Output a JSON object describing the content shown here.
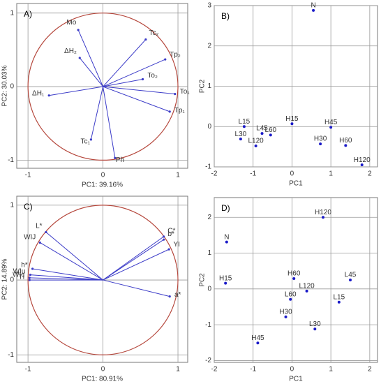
{
  "chart_data": [
    {
      "type": "loading",
      "title": "A)",
      "x_label": "PC1: 39.16%",
      "y_label": "PC2: 30.03%",
      "labels": [
        "Mo",
        "ΔH₂",
        "ΔH₁",
        "Tc₂",
        "Tp₂",
        "To₂",
        "To₁",
        "Tp₁",
        "Tc₁",
        "Ph"
      ],
      "x": [
        -0.33,
        -0.31,
        -0.72,
        0.57,
        0.83,
        0.53,
        0.96,
        0.89,
        -0.16,
        0.16
      ],
      "values": [
        0.77,
        0.39,
        -0.12,
        0.64,
        0.37,
        0.1,
        -0.1,
        -0.34,
        -0.72,
        -0.97
      ],
      "xlim": [
        -1.15,
        1.13
      ],
      "ylim": [
        -1.11,
        1.13
      ],
      "xticks": [
        -1,
        0,
        1
      ],
      "yticks": [
        -1,
        0,
        1
      ],
      "grid": true,
      "color": "#3c3cc8",
      "circle_color": "#b5473c"
    },
    {
      "type": "scatter",
      "title": "B)",
      "x_label": "PC1",
      "y_label": "PC2",
      "labels": [
        "N",
        "L15",
        "L30",
        "L45",
        "L60",
        "L120",
        "H15",
        "H45",
        "H30",
        "H60",
        "H120"
      ],
      "x": [
        0.55,
        -1.23,
        -1.32,
        -0.77,
        -0.55,
        -0.93,
        0.0,
        1.0,
        0.73,
        1.38,
        1.8
      ],
      "values": [
        2.88,
        0.0,
        -0.31,
        -0.17,
        -0.21,
        -0.48,
        0.07,
        -0.02,
        -0.43,
        -0.47,
        -0.95
      ],
      "xlim": [
        -2,
        2.2
      ],
      "ylim": [
        -1,
        3
      ],
      "xticks": [
        -2,
        -1,
        0,
        1,
        2
      ],
      "yticks": [
        -1,
        0,
        1,
        2,
        3
      ],
      "grid": true,
      "color": "#1a1ac8"
    },
    {
      "type": "loading",
      "title": "C)",
      "x_label": "PC1: 80.91%",
      "y_label": "PC2: 14.89%",
      "labels": [
        "L*",
        "WIJ",
        "C*",
        "b*",
        "YI",
        "h*",
        "WIu",
        "WIc",
        "TI",
        "a*"
      ],
      "x": [
        -0.76,
        -0.84,
        0.81,
        0.81,
        0.88,
        -0.94,
        -0.97,
        -0.98,
        -0.98,
        0.89
      ],
      "values": [
        0.64,
        0.5,
        0.58,
        0.54,
        0.41,
        0.15,
        0.07,
        0.03,
        0.0,
        -0.22
      ],
      "xlim": [
        -1.15,
        1.13
      ],
      "ylim": [
        -1.1,
        1.12
      ],
      "xticks": [
        -1,
        0,
        1
      ],
      "yticks": [
        -1,
        0,
        1
      ],
      "grid": true,
      "color": "#3c3cc8",
      "circle_color": "#b5473c"
    },
    {
      "type": "scatter",
      "title": "D)",
      "x_label": "PC1",
      "y_label": "PC2",
      "labels": [
        "N",
        "H120",
        "H15",
        "H60",
        "L45",
        "L120",
        "L60",
        "L15",
        "H30",
        "L30",
        "H45"
      ],
      "x": [
        -1.68,
        0.8,
        -1.71,
        0.05,
        1.5,
        0.38,
        -0.04,
        1.21,
        -0.16,
        0.59,
        -0.88
      ],
      "values": [
        1.31,
        2.0,
        0.16,
        0.29,
        0.25,
        -0.06,
        -0.29,
        -0.37,
        -0.78,
        -1.12,
        -1.51
      ],
      "xlim": [
        -2,
        2.2
      ],
      "ylim": [
        -2.05,
        2.55
      ],
      "xticks": [
        -2,
        -1,
        0,
        1,
        2
      ],
      "yticks": [
        -2,
        -1,
        0,
        1,
        2
      ],
      "grid": true,
      "color": "#1a1ac8"
    }
  ]
}
